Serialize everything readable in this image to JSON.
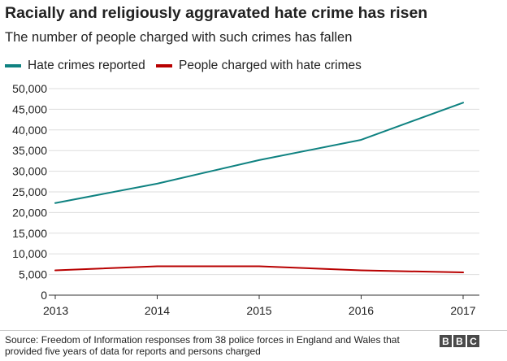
{
  "chart_data": {
    "type": "line",
    "title": "Racially and religiously aggravated hate crime has risen",
    "subtitle": "The number of people charged with such crimes has fallen",
    "categories": [
      "2013",
      "2014",
      "2015",
      "2016",
      "2017"
    ],
    "series": [
      {
        "name": "Hate crimes reported",
        "color": "#0f8281",
        "values": [
          22300,
          27000,
          32700,
          37600,
          46600
        ]
      },
      {
        "name": "People charged with hate crimes",
        "color": "#b80000",
        "values": [
          6000,
          7000,
          7000,
          6000,
          5500
        ]
      }
    ],
    "y_ticks": [
      "0",
      "5,000",
      "10,000",
      "15,000",
      "20,000",
      "25,000",
      "30,000",
      "35,000",
      "40,000",
      "45,000",
      "50,000"
    ],
    "ylim": [
      0,
      50000
    ],
    "xlabel": "",
    "ylabel": "",
    "grid": true,
    "legend_position": "top-left"
  },
  "footer": {
    "source": "Source: Freedom of Information responses from 38 police forces in England and Wales that provided five years of data for reports and persons charged",
    "logo_letters": [
      "B",
      "B",
      "C"
    ]
  }
}
